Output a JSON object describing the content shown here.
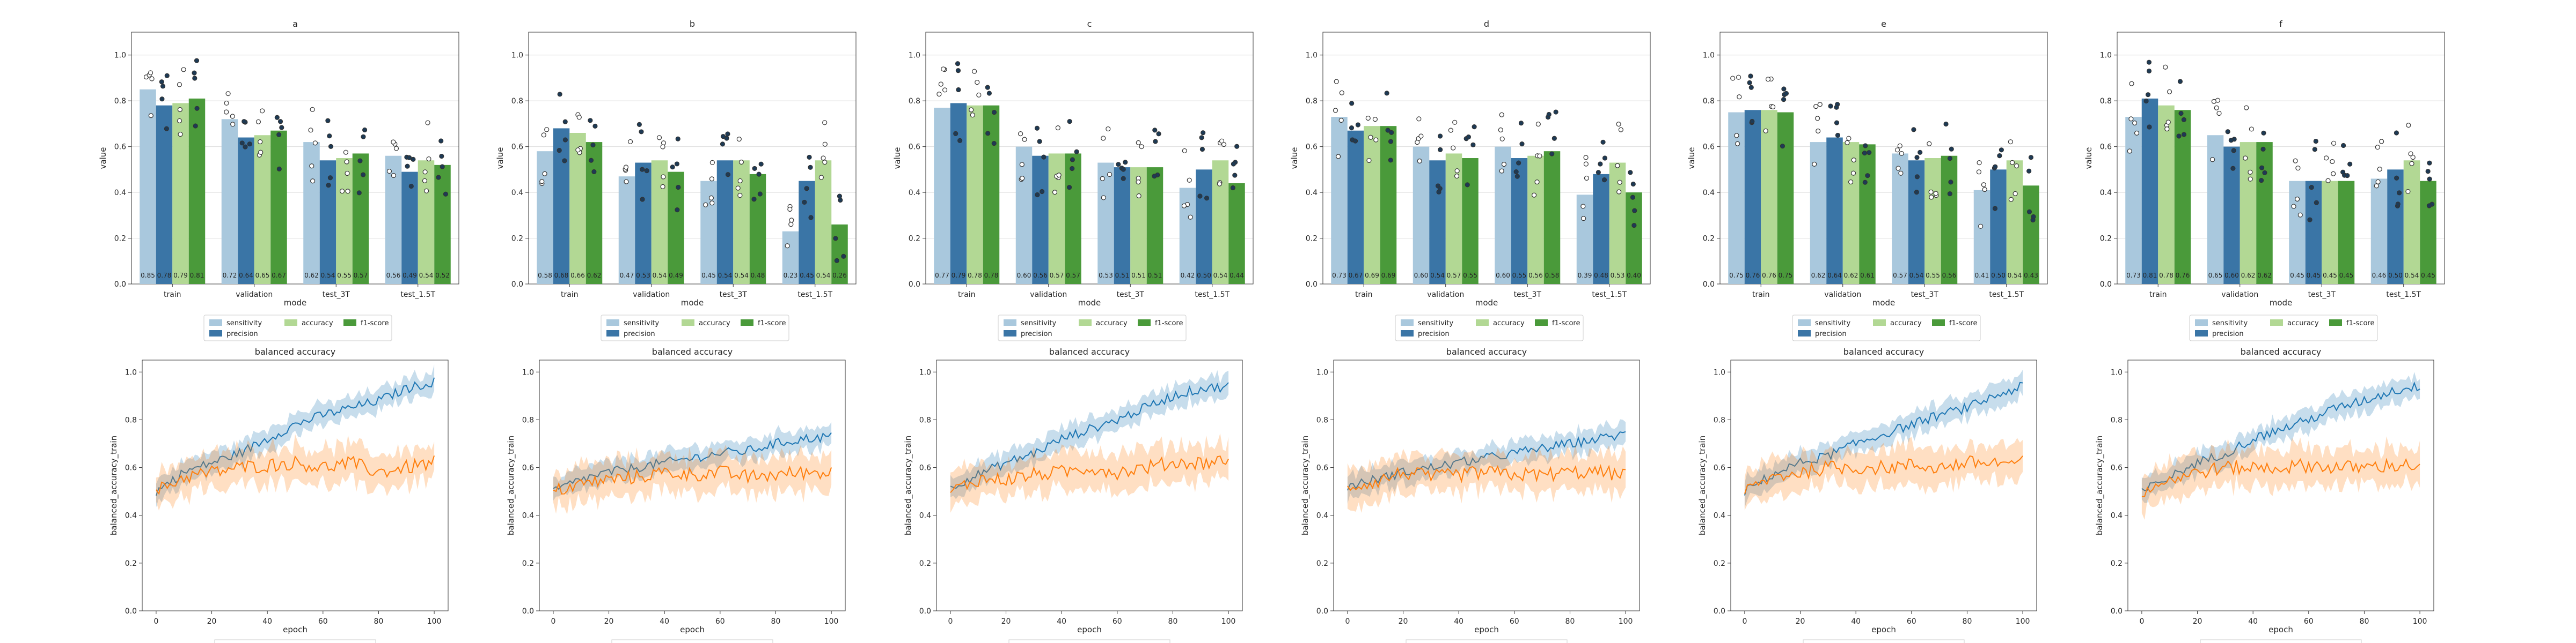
{
  "chart_data": [
    {
      "id": "a",
      "type": "bar",
      "title": "a",
      "xlabel": "mode",
      "ylabel": "value",
      "ylim": [
        0,
        1.1
      ],
      "categories": [
        "train",
        "validation",
        "test_3T",
        "test_1.5T"
      ],
      "series": [
        {
          "name": "sensitivity",
          "values": [
            0.85,
            0.72,
            0.62,
            0.56
          ]
        },
        {
          "name": "precision",
          "values": [
            0.78,
            0.64,
            0.54,
            0.49
          ]
        },
        {
          "name": "accuracy",
          "values": [
            0.79,
            0.65,
            0.55,
            0.54
          ]
        },
        {
          "name": "f1-score",
          "values": [
            0.81,
            0.67,
            0.57,
            0.52
          ]
        }
      ],
      "bar_labels": [
        [
          "0.85",
          "0.78",
          "0.79",
          "0.81"
        ],
        [
          "0.72",
          "0.64",
          "0.65",
          "0.67"
        ],
        [
          "0.62",
          "0.54",
          "0.55",
          "0.57"
        ],
        [
          "0.56",
          "0.49",
          "0.54",
          "0.52"
        ]
      ]
    },
    {
      "id": "b",
      "type": "bar",
      "title": "b",
      "xlabel": "mode",
      "ylabel": "value",
      "ylim": [
        0,
        1.1
      ],
      "categories": [
        "train",
        "validation",
        "test_3T",
        "test_1.5T"
      ],
      "series": [
        {
          "name": "sensitivity",
          "values": [
            0.58,
            0.47,
            0.45,
            0.23
          ]
        },
        {
          "name": "precision",
          "values": [
            0.68,
            0.53,
            0.54,
            0.45
          ]
        },
        {
          "name": "accuracy",
          "values": [
            0.66,
            0.54,
            0.54,
            0.54
          ]
        },
        {
          "name": "f1-score",
          "values": [
            0.62,
            0.49,
            0.48,
            0.26
          ]
        }
      ],
      "bar_labels": [
        [
          "0.58",
          "0.68",
          "0.66",
          "0.62"
        ],
        [
          "0.47",
          "0.53",
          "0.54",
          "0.49"
        ],
        [
          "0.45",
          "0.54",
          "0.54",
          "0.48"
        ],
        [
          "0.23",
          "0.45",
          "0.54",
          "0.26"
        ]
      ]
    },
    {
      "id": "c",
      "type": "bar",
      "title": "c",
      "xlabel": "mode",
      "ylabel": "value",
      "ylim": [
        0,
        1.1
      ],
      "categories": [
        "train",
        "validation",
        "test_3T",
        "test_1.5T"
      ],
      "series": [
        {
          "name": "sensitivity",
          "values": [
            0.77,
            0.6,
            0.53,
            0.42
          ]
        },
        {
          "name": "precision",
          "values": [
            0.79,
            0.56,
            0.51,
            0.5
          ]
        },
        {
          "name": "accuracy",
          "values": [
            0.78,
            0.57,
            0.51,
            0.54
          ]
        },
        {
          "name": "f1-score",
          "values": [
            0.78,
            0.57,
            0.51,
            0.44
          ]
        }
      ],
      "bar_labels": [
        [
          "0.77",
          "0.79",
          "0.78",
          "0.78"
        ],
        [
          "0.60",
          "0.56",
          "0.57",
          "0.57"
        ],
        [
          "0.53",
          "0.51",
          "0.51",
          "0.51"
        ],
        [
          "0.42",
          "0.50",
          "0.54",
          "0.44"
        ]
      ]
    },
    {
      "id": "d",
      "type": "bar",
      "title": "d",
      "xlabel": "mode",
      "ylabel": "value",
      "ylim": [
        0,
        1.1
      ],
      "categories": [
        "train",
        "validation",
        "test_3T",
        "test_1.5T"
      ],
      "series": [
        {
          "name": "sensitivity",
          "values": [
            0.73,
            0.6,
            0.6,
            0.39
          ]
        },
        {
          "name": "precision",
          "values": [
            0.67,
            0.54,
            0.55,
            0.48
          ]
        },
        {
          "name": "accuracy",
          "values": [
            0.69,
            0.57,
            0.56,
            0.53
          ]
        },
        {
          "name": "f1-score",
          "values": [
            0.69,
            0.55,
            0.58,
            0.4
          ]
        }
      ],
      "bar_labels": [
        [
          "0.73",
          "0.67",
          "0.69",
          "0.69"
        ],
        [
          "0.60",
          "0.54",
          "0.57",
          "0.55"
        ],
        [
          "0.60",
          "0.55",
          "0.56",
          "0.58"
        ],
        [
          "0.39",
          "0.48",
          "0.53",
          "0.40"
        ]
      ]
    },
    {
      "id": "e",
      "type": "bar",
      "title": "e",
      "xlabel": "mode",
      "ylabel": "value",
      "ylim": [
        0,
        1.1
      ],
      "categories": [
        "train",
        "validation",
        "test_3T",
        "test_1.5T"
      ],
      "series": [
        {
          "name": "sensitivity",
          "values": [
            0.75,
            0.62,
            0.57,
            0.41
          ]
        },
        {
          "name": "precision",
          "values": [
            0.76,
            0.64,
            0.54,
            0.5
          ]
        },
        {
          "name": "accuracy",
          "values": [
            0.76,
            0.62,
            0.55,
            0.54
          ]
        },
        {
          "name": "f1-score",
          "values": [
            0.75,
            0.61,
            0.56,
            0.43
          ]
        }
      ],
      "bar_labels": [
        [
          "0.75",
          "0.76",
          "0.76",
          "0.75"
        ],
        [
          "0.62",
          "0.64",
          "0.62",
          "0.61"
        ],
        [
          "0.57",
          "0.54",
          "0.55",
          "0.56"
        ],
        [
          "0.41",
          "0.50",
          "0.54",
          "0.43"
        ]
      ]
    },
    {
      "id": "f",
      "type": "bar",
      "title": "f",
      "xlabel": "mode",
      "ylabel": "value",
      "ylim": [
        0,
        1.1
      ],
      "categories": [
        "train",
        "validation",
        "test_3T",
        "test_1.5T"
      ],
      "series": [
        {
          "name": "sensitivity",
          "values": [
            0.73,
            0.65,
            0.45,
            0.46
          ]
        },
        {
          "name": "precision",
          "values": [
            0.81,
            0.6,
            0.45,
            0.5
          ]
        },
        {
          "name": "accuracy",
          "values": [
            0.78,
            0.62,
            0.45,
            0.54
          ]
        },
        {
          "name": "f1-score",
          "values": [
            0.76,
            0.62,
            0.45,
            0.45
          ]
        }
      ],
      "bar_labels": [
        [
          "0.73",
          "0.81",
          "0.78",
          "0.76"
        ],
        [
          "0.65",
          "0.60",
          "0.62",
          "0.62"
        ],
        [
          "0.45",
          "0.45",
          "0.45",
          "0.45"
        ],
        [
          "0.46",
          "0.50",
          "0.54",
          "0.45"
        ]
      ]
    },
    {
      "id": "a_line",
      "type": "line",
      "title": "balanced accuracy",
      "xlabel": "epoch",
      "ylabel": "balanced_accuracy_train",
      "xlim": [
        -5,
        105
      ],
      "ylim": [
        0,
        1.05
      ],
      "series": [
        {
          "x": [
            0,
            10,
            20,
            30,
            40,
            50,
            60,
            70,
            80,
            90,
            100
          ],
          "values": [
            0.5,
            0.58,
            0.62,
            0.66,
            0.72,
            0.78,
            0.82,
            0.85,
            0.88,
            0.93,
            0.96
          ]
        },
        {
          "x": [
            0,
            10,
            20,
            30,
            40,
            50,
            60,
            70,
            80,
            90,
            100
          ],
          "values": [
            0.5,
            0.56,
            0.58,
            0.6,
            0.61,
            0.62,
            0.6,
            0.62,
            0.58,
            0.6,
            0.62
          ]
        }
      ]
    },
    {
      "id": "b_line",
      "type": "line",
      "title": "balanced accuracy",
      "xlabel": "epoch",
      "ylabel": "balanced_accuracy_train",
      "xlim": [
        -5,
        105
      ],
      "ylim": [
        0,
        1.05
      ],
      "series": [
        {
          "x": [
            0,
            10,
            20,
            30,
            40,
            50,
            60,
            70,
            80,
            90,
            100
          ],
          "values": [
            0.5,
            0.55,
            0.58,
            0.6,
            0.62,
            0.64,
            0.66,
            0.67,
            0.7,
            0.72,
            0.73
          ]
        },
        {
          "x": [
            0,
            10,
            20,
            30,
            40,
            50,
            60,
            70,
            80,
            90,
            100
          ],
          "values": [
            0.5,
            0.53,
            0.55,
            0.56,
            0.58,
            0.57,
            0.58,
            0.56,
            0.57,
            0.58,
            0.58
          ]
        }
      ]
    },
    {
      "id": "c_line",
      "type": "line",
      "title": "balanced accuracy",
      "xlabel": "epoch",
      "ylabel": "balanced_accuracy_train",
      "xlim": [
        -5,
        105
      ],
      "ylim": [
        0,
        1.05
      ],
      "series": [
        {
          "x": [
            0,
            10,
            20,
            30,
            40,
            50,
            60,
            70,
            80,
            90,
            100
          ],
          "values": [
            0.52,
            0.57,
            0.62,
            0.66,
            0.72,
            0.76,
            0.8,
            0.85,
            0.9,
            0.93,
            0.94
          ]
        },
        {
          "x": [
            0,
            10,
            20,
            30,
            40,
            50,
            60,
            70,
            80,
            90,
            100
          ],
          "values": [
            0.5,
            0.55,
            0.55,
            0.57,
            0.58,
            0.6,
            0.58,
            0.6,
            0.62,
            0.62,
            0.63
          ]
        }
      ]
    },
    {
      "id": "d_line",
      "type": "line",
      "title": "balanced accuracy",
      "xlabel": "epoch",
      "ylabel": "balanced_accuracy_train",
      "xlim": [
        -5,
        105
      ],
      "ylim": [
        0,
        1.05
      ],
      "series": [
        {
          "x": [
            0,
            10,
            20,
            30,
            40,
            50,
            60,
            70,
            80,
            90,
            100
          ],
          "values": [
            0.52,
            0.55,
            0.58,
            0.6,
            0.62,
            0.64,
            0.66,
            0.68,
            0.7,
            0.72,
            0.74
          ]
        },
        {
          "x": [
            0,
            10,
            20,
            30,
            40,
            50,
            60,
            70,
            80,
            90,
            100
          ],
          "values": [
            0.52,
            0.54,
            0.58,
            0.56,
            0.57,
            0.58,
            0.57,
            0.57,
            0.58,
            0.58,
            0.57
          ]
        }
      ]
    },
    {
      "id": "e_line",
      "type": "line",
      "title": "balanced accuracy",
      "xlabel": "epoch",
      "ylabel": "balanced_accuracy_train",
      "xlim": [
        -5,
        105
      ],
      "ylim": [
        0,
        1.05
      ],
      "series": [
        {
          "x": [
            0,
            10,
            20,
            30,
            40,
            50,
            60,
            70,
            80,
            90,
            100
          ],
          "values": [
            0.5,
            0.57,
            0.62,
            0.65,
            0.7,
            0.74,
            0.78,
            0.82,
            0.85,
            0.9,
            0.94
          ]
        },
        {
          "x": [
            0,
            10,
            20,
            30,
            40,
            50,
            60,
            70,
            80,
            90,
            100
          ],
          "values": [
            0.5,
            0.56,
            0.58,
            0.6,
            0.6,
            0.6,
            0.61,
            0.6,
            0.62,
            0.62,
            0.62
          ]
        }
      ]
    },
    {
      "id": "f_line",
      "type": "line",
      "title": "balanced accuracy",
      "xlabel": "epoch",
      "ylabel": "balanced_accuracy_train",
      "xlim": [
        -5,
        105
      ],
      "ylim": [
        0,
        1.05
      ],
      "series": [
        {
          "x": [
            0,
            10,
            20,
            30,
            40,
            50,
            60,
            70,
            80,
            90,
            100
          ],
          "values": [
            0.5,
            0.56,
            0.62,
            0.66,
            0.72,
            0.76,
            0.8,
            0.85,
            0.88,
            0.92,
            0.94
          ]
        },
        {
          "x": [
            0,
            10,
            20,
            30,
            40,
            50,
            60,
            70,
            80,
            90,
            100
          ],
          "values": [
            0.5,
            0.55,
            0.58,
            0.6,
            0.6,
            0.6,
            0.61,
            0.6,
            0.6,
            0.61,
            0.61
          ]
        }
      ]
    }
  ],
  "colors": {
    "sensitivity": "#a9c8dd",
    "precision": "#3a75a6",
    "accuracy": "#b2d894",
    "f1-score": "#4a9a3a",
    "line_train": "#1f77b4",
    "line_val": "#ff7f0e",
    "grid": "#dddddd",
    "text": "#262626"
  }
}
